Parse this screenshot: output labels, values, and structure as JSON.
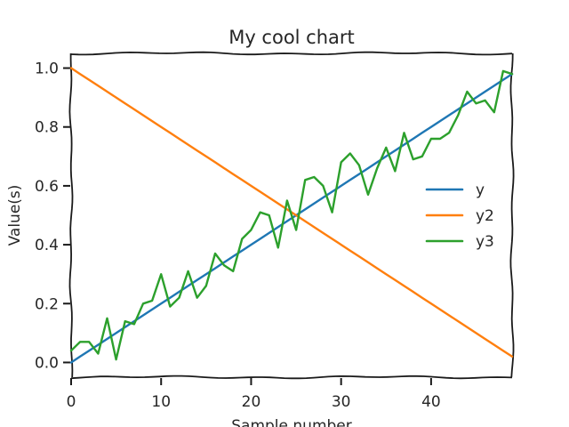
{
  "chart_data": {
    "type": "line",
    "title": "My cool chart",
    "xlabel": "Sample number",
    "ylabel": "Value(s)",
    "xlim": [
      0,
      49
    ],
    "ylim": [
      -0.05,
      1.05
    ],
    "xticks": [
      0,
      10,
      20,
      30,
      40
    ],
    "yticks": [
      0.0,
      0.2,
      0.4,
      0.6,
      0.8,
      1.0
    ],
    "grid": false,
    "legend_position": "center-right",
    "x": [
      0,
      1,
      2,
      3,
      4,
      5,
      6,
      7,
      8,
      9,
      10,
      11,
      12,
      13,
      14,
      15,
      16,
      17,
      18,
      19,
      20,
      21,
      22,
      23,
      24,
      25,
      26,
      27,
      28,
      29,
      30,
      31,
      32,
      33,
      34,
      35,
      36,
      37,
      38,
      39,
      40,
      41,
      42,
      43,
      44,
      45,
      46,
      47,
      48,
      49
    ],
    "series": [
      {
        "name": "y",
        "color": "#1f77b4",
        "values": [
          0.0,
          0.02,
          0.04,
          0.06,
          0.08,
          0.1,
          0.12,
          0.14,
          0.16,
          0.18,
          0.2,
          0.22,
          0.24,
          0.26,
          0.28,
          0.3,
          0.32,
          0.34,
          0.36,
          0.38,
          0.4,
          0.42,
          0.44,
          0.46,
          0.48,
          0.5,
          0.52,
          0.54,
          0.56,
          0.58,
          0.6,
          0.62,
          0.64,
          0.66,
          0.68,
          0.7,
          0.72,
          0.74,
          0.76,
          0.78,
          0.8,
          0.82,
          0.84,
          0.86,
          0.88,
          0.9,
          0.92,
          0.94,
          0.96,
          0.98
        ]
      },
      {
        "name": "y2",
        "color": "#ff7f0e",
        "values": [
          1.0,
          0.98,
          0.96,
          0.94,
          0.92,
          0.9,
          0.88,
          0.86,
          0.84,
          0.82,
          0.8,
          0.78,
          0.76,
          0.74,
          0.72,
          0.7,
          0.68,
          0.66,
          0.64,
          0.62,
          0.6,
          0.58,
          0.56,
          0.54,
          0.52,
          0.5,
          0.48,
          0.46,
          0.44,
          0.42,
          0.4,
          0.38,
          0.36,
          0.34,
          0.32,
          0.3,
          0.28,
          0.26,
          0.24,
          0.22,
          0.2,
          0.18,
          0.16,
          0.14,
          0.12,
          0.1,
          0.08,
          0.06,
          0.04,
          0.02
        ]
      },
      {
        "name": "y3",
        "color": "#2ca02c",
        "values": [
          0.04,
          0.07,
          0.07,
          0.03,
          0.15,
          0.01,
          0.14,
          0.13,
          0.2,
          0.21,
          0.3,
          0.19,
          0.22,
          0.31,
          0.22,
          0.26,
          0.37,
          0.33,
          0.31,
          0.42,
          0.45,
          0.51,
          0.5,
          0.39,
          0.55,
          0.45,
          0.62,
          0.63,
          0.6,
          0.51,
          0.68,
          0.71,
          0.67,
          0.57,
          0.66,
          0.73,
          0.65,
          0.78,
          0.69,
          0.7,
          0.76,
          0.76,
          0.78,
          0.84,
          0.92,
          0.88,
          0.89,
          0.85,
          0.99,
          0.98
        ]
      }
    ]
  }
}
